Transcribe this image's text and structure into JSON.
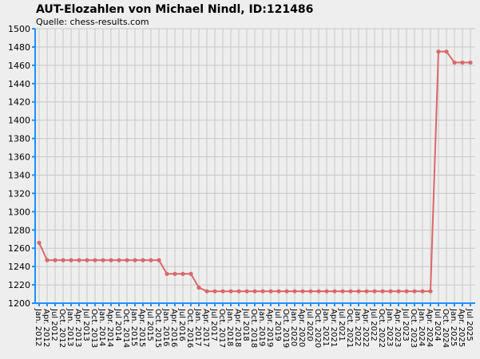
{
  "chart_data": {
    "type": "line",
    "title": "AUT-Elozahlen von Michael Nindl, ID:121486",
    "subtitle": "Quelle: chess-results.com",
    "categories": [
      "Jan. 2012",
      "Apr. 2012",
      "Jul 2012",
      "Oct. 2012",
      "Jan. 2013",
      "Apr. 2013",
      "Jul 2013",
      "Oct. 2013",
      "Jan. 2014",
      "Apr. 2014",
      "Jul 2014",
      "Oct. 2014",
      "Jan. 2015",
      "Apr. 2015",
      "Jul 2015",
      "Oct. 2015",
      "Jan. 2016",
      "Apr. 2016",
      "Jul 2016",
      "Oct. 2016",
      "Jan. 2017",
      "Apr. 2017",
      "Jul 2017",
      "Oct. 2017",
      "Jan. 2018",
      "Apr. 2018",
      "Jul 2018",
      "Oct. 2018",
      "Jan. 2019",
      "Apr. 2019",
      "Jul 2019",
      "Oct. 2019",
      "Jan. 2020",
      "Apr. 2020",
      "Jul 2020",
      "Oct. 2020",
      "Jan. 2021",
      "Apr. 2021",
      "Jul 2021",
      "Oct. 2021",
      "Jan. 2022",
      "Apr. 2022",
      "Jul 2022",
      "Oct. 2022",
      "Jan. 2023",
      "Apr. 2023",
      "Jul 2023",
      "Oct. 2023",
      "Jan. 2024",
      "Apr. 2024",
      "Jul 2024",
      "Oct. 2024",
      "Jan. 2025",
      "Apr. 2025",
      "Jul 2025"
    ],
    "values": [
      1266,
      1247,
      1247,
      1247,
      1247,
      1247,
      1247,
      1247,
      1247,
      1247,
      1247,
      1247,
      1247,
      1247,
      1247,
      1247,
      1232,
      1232,
      1232,
      1232,
      1217,
      1213,
      1213,
      1213,
      1213,
      1213,
      1213,
      1213,
      1213,
      1213,
      1213,
      1213,
      1213,
      1213,
      1213,
      1213,
      1213,
      1213,
      1213,
      1213,
      1213,
      1213,
      1213,
      1213,
      1213,
      1213,
      1213,
      1213,
      1213,
      1213,
      1475,
      1475,
      1463,
      1463,
      1463
    ],
    "color": "#d9686a",
    "ylim": [
      1200,
      1500
    ],
    "yticks": [
      1200,
      1220,
      1240,
      1260,
      1280,
      1300,
      1320,
      1340,
      1360,
      1380,
      1400,
      1420,
      1440,
      1460,
      1480,
      1500
    ],
    "grid": true
  }
}
